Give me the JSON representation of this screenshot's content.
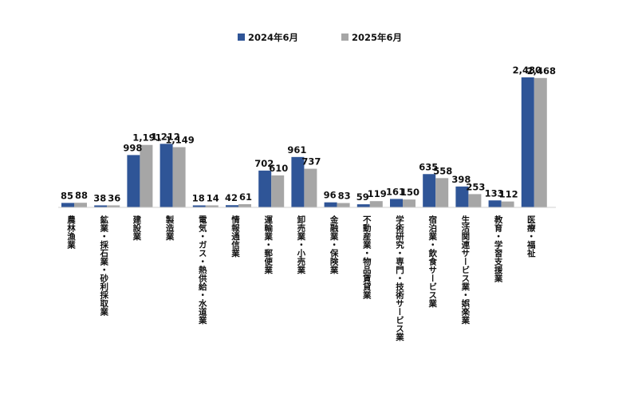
{
  "chart_data": {
    "type": "bar",
    "title": "",
    "xlabel": "",
    "ylabel": "",
    "ylim": [
      0,
      2600
    ],
    "grid": false,
    "legend_position": "top-center",
    "categories": [
      "農林漁業",
      "鉱業・採石業・砂利採取業",
      "建設業",
      "製造業",
      "電気・ガス・熱供給・水道業",
      "情報通信業",
      "運輸業・郵便業",
      "卸売業・小売業",
      "金融業・保険業",
      "不動産業・物品賃貸業",
      "学術研究・専門・技術サービス業",
      "宿泊業・飲食サービス業",
      "生活関連サービス業・娯楽業",
      "教育・学習支援業",
      "医療・福祉"
    ],
    "series": [
      {
        "name": "2024年6月",
        "color": "#2f5597",
        "values": [
          85,
          38,
          998,
          1212,
          18,
          42,
          702,
          961,
          96,
          59,
          161,
          635,
          398,
          133,
          2480
        ],
        "labels": [
          "85",
          "38",
          "998",
          "1,212",
          "18",
          "42",
          "702",
          "961",
          "96",
          "59",
          "161",
          "635",
          "398",
          "133",
          "2,480"
        ]
      },
      {
        "name": "2025年6月",
        "color": "#a6a6a6",
        "values": [
          88,
          36,
          1191,
          1149,
          14,
          61,
          610,
          737,
          83,
          119,
          150,
          558,
          253,
          112,
          2468
        ],
        "labels": [
          "88",
          "36",
          "1,191",
          "1,149",
          "14",
          "61",
          "610",
          "737",
          "83",
          "119",
          "150",
          "558",
          "253",
          "112",
          "2,468"
        ]
      }
    ]
  }
}
